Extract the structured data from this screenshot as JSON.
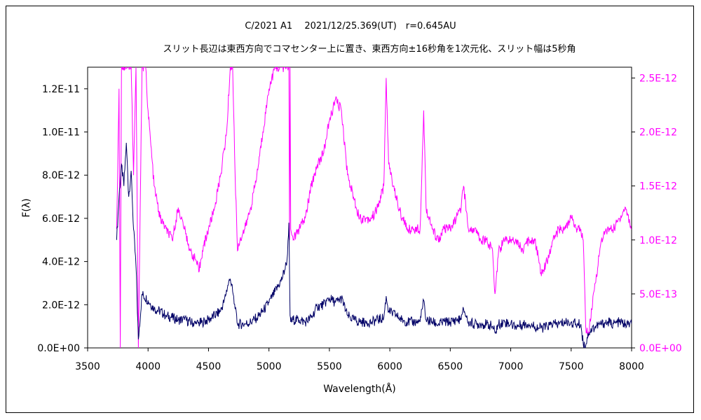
{
  "chart_data": {
    "type": "line",
    "title": "C/2021 A1　 2021/12/25.369(UT)　r=0.645AU",
    "subtitle": "スリット長辺は東西方向でコマセンター上に置き、東西方向±16秒角を1次元化、スリット幅は5秒角",
    "xlabel": "Wavelength(Å)",
    "ylabel": "F(λ)",
    "xlim": [
      3500,
      8000
    ],
    "x_ticks": [
      "3500",
      "4000",
      "4500",
      "5000",
      "5500",
      "6000",
      "6500",
      "7000",
      "7500",
      "8000"
    ],
    "y_left_lim": [
      0,
      1.3e-11
    ],
    "y_left_ticks": [
      "0.0E+00",
      "2.0E-12",
      "4.0E-12",
      "6.0E-12",
      "8.0E-12",
      "1.0E-11",
      "1.2E-11"
    ],
    "y_right_lim": [
      0,
      2.6e-12
    ],
    "y_right_ticks": [
      "0.0E+00",
      "5.0E-13",
      "1.0E-12",
      "1.5E-12",
      "2.0E-12",
      "2.5E-12"
    ],
    "grid": false,
    "legend": "none",
    "series": [
      {
        "axis": "left",
        "color": "#000066",
        "x": [
          3740,
          3760,
          3780,
          3800,
          3820,
          3840,
          3860,
          3880,
          3900,
          3920,
          3950,
          4000,
          4050,
          4100,
          4150,
          4200,
          4250,
          4300,
          4350,
          4400,
          4450,
          4500,
          4550,
          4600,
          4630,
          4660,
          4680,
          4700,
          4720,
          4740,
          4800,
          4850,
          4900,
          4950,
          5000,
          5050,
          5100,
          5130,
          5150,
          5165,
          5170,
          5175,
          5180,
          5200,
          5250,
          5300,
          5350,
          5400,
          5450,
          5500,
          5550,
          5600,
          5650,
          5700,
          5750,
          5800,
          5850,
          5900,
          5950,
          5970,
          5990,
          6050,
          6100,
          6150,
          6200,
          6250,
          6280,
          6300,
          6350,
          6400,
          6450,
          6500,
          6550,
          6590,
          6610,
          6650,
          6700,
          6750,
          6800,
          6850,
          6870,
          6900,
          6950,
          7000,
          7050,
          7100,
          7150,
          7200,
          7250,
          7300,
          7350,
          7400,
          7450,
          7500,
          7550,
          7580,
          7600,
          7620,
          7640,
          7700,
          7750,
          7800,
          7850,
          7900,
          7950,
          8000
        ],
        "y": [
          5e-12,
          7e-12,
          8.5e-12,
          7.5e-12,
          9.5e-12,
          7e-12,
          8.2e-12,
          5.5e-12,
          3.8e-12,
          4e-13,
          2.5e-12,
          2.2e-12,
          1.8e-12,
          1.7e-12,
          1.5e-12,
          1.4e-12,
          1.3e-12,
          1.3e-12,
          1.2e-12,
          1.1e-12,
          1.2e-12,
          1.3e-12,
          1.5e-12,
          1.7e-12,
          2.2e-12,
          2.9e-12,
          3.2e-12,
          2.6e-12,
          1.8e-12,
          1.1e-12,
          1.1e-12,
          1.2e-12,
          1.4e-12,
          1.7e-12,
          2.1e-12,
          2.6e-12,
          3.1e-12,
          3.6e-12,
          4.1e-12,
          5.8e-12,
          3.5e-12,
          1.5e-12,
          1.2e-12,
          1.3e-12,
          1.3e-12,
          1.2e-12,
          1.4e-12,
          1.9e-12,
          2e-12,
          2.3e-12,
          2.1e-12,
          2.3e-12,
          1.5e-12,
          1.3e-12,
          1.2e-12,
          1.2e-12,
          1.2e-12,
          1.3e-12,
          1.4e-12,
          2.4e-12,
          1.7e-12,
          1.5e-12,
          1.3e-12,
          1.2e-12,
          1.2e-12,
          1.2e-12,
          2.2e-12,
          1.3e-12,
          1.2e-12,
          1.1e-12,
          1.2e-12,
          1.2e-12,
          1.3e-12,
          1.3e-12,
          1.8e-12,
          1.2e-12,
          1.1e-12,
          1.1e-12,
          1.1e-12,
          1e-12,
          7e-13,
          1.1e-12,
          1.2e-12,
          1.1e-12,
          1e-12,
          1.1e-12,
          1.1e-12,
          1e-12,
          9e-13,
          1e-12,
          1.1e-12,
          1.1e-12,
          1.2e-12,
          1.2e-12,
          1.1e-12,
          1.1e-12,
          2e-13,
          1e-13,
          7e-13,
          1e-12,
          1.1e-12,
          1.2e-12,
          1.1e-12,
          1.2e-12,
          1.1e-12,
          1.1e-12
        ]
      },
      {
        "axis": "right",
        "color": "#ff00ff",
        "x": [
          3740,
          3760,
          3770,
          3780,
          3800,
          3820,
          3840,
          3860,
          3880,
          3900,
          3920,
          3950,
          3980,
          4000,
          4050,
          4100,
          4150,
          4200,
          4250,
          4300,
          4350,
          4400,
          4420,
          4450,
          4500,
          4550,
          4600,
          4650,
          4680,
          4700,
          4720,
          4740,
          4760,
          4800,
          4850,
          4900,
          4950,
          5000,
          5050,
          5100,
          5130,
          5150,
          5165,
          5170,
          5175,
          5180,
          5200,
          5250,
          5300,
          5350,
          5400,
          5450,
          5500,
          5550,
          5600,
          5650,
          5700,
          5750,
          5800,
          5850,
          5900,
          5950,
          5970,
          5990,
          6050,
          6100,
          6150,
          6200,
          6250,
          6280,
          6300,
          6350,
          6400,
          6450,
          6500,
          6550,
          6590,
          6610,
          6650,
          6700,
          6750,
          6800,
          6850,
          6870,
          6900,
          6950,
          7000,
          7050,
          7100,
          7150,
          7200,
          7250,
          7300,
          7350,
          7400,
          7450,
          7500,
          7550,
          7580,
          7600,
          7620,
          7640,
          7700,
          7750,
          7800,
          7850,
          7900,
          7950,
          8000
        ],
        "y": [
          1.1e-12,
          2.4e-12,
          0,
          2.6e-12,
          2.6e-12,
          2.6e-12,
          2.6e-12,
          2.6e-12,
          1.6e-12,
          2.6e-12,
          0,
          2.6e-12,
          2.6e-12,
          2.2e-12,
          1.5e-12,
          1.2e-12,
          1.1e-12,
          1e-12,
          1.3e-12,
          1.1e-12,
          9e-13,
          8e-13,
          7e-13,
          9e-13,
          1.1e-12,
          1.3e-12,
          1.6e-12,
          2e-12,
          2.6e-12,
          2.6e-12,
          1.6e-12,
          9e-13,
          1e-12,
          1.1e-12,
          1.3e-12,
          1.6e-12,
          2e-12,
          2.4e-12,
          2.6e-12,
          2.6e-12,
          2.6e-12,
          2.6e-12,
          2.6e-12,
          1e-12,
          2.6e-12,
          1.1e-12,
          1e-12,
          1.1e-12,
          1.2e-12,
          1.5e-12,
          1.7e-12,
          1.8e-12,
          2.1e-12,
          2.3e-12,
          2.2e-12,
          1.6e-12,
          1.4e-12,
          1.2e-12,
          1.2e-12,
          1.2e-12,
          1.3e-12,
          1.5e-12,
          2.5e-12,
          1.7e-12,
          1.4e-12,
          1.2e-12,
          1.1e-12,
          1.1e-12,
          1.1e-12,
          2.2e-12,
          1.3e-12,
          1.1e-12,
          1e-12,
          1.1e-12,
          1.1e-12,
          1.2e-12,
          1.3e-12,
          1.5e-12,
          1.1e-12,
          1.1e-12,
          1e-12,
          1e-12,
          9e-13,
          5e-13,
          9e-13,
          1e-12,
          1e-12,
          1e-12,
          9e-13,
          1e-12,
          1e-12,
          7e-13,
          8e-13,
          1e-12,
          1.1e-12,
          1.1e-12,
          1.2e-12,
          1.1e-12,
          1.1e-12,
          1e-12,
          2e-13,
          1e-13,
          6e-13,
          1e-12,
          1.1e-12,
          1.1e-12,
          1.2e-12,
          1.3e-12,
          1.1e-12
        ]
      }
    ]
  }
}
